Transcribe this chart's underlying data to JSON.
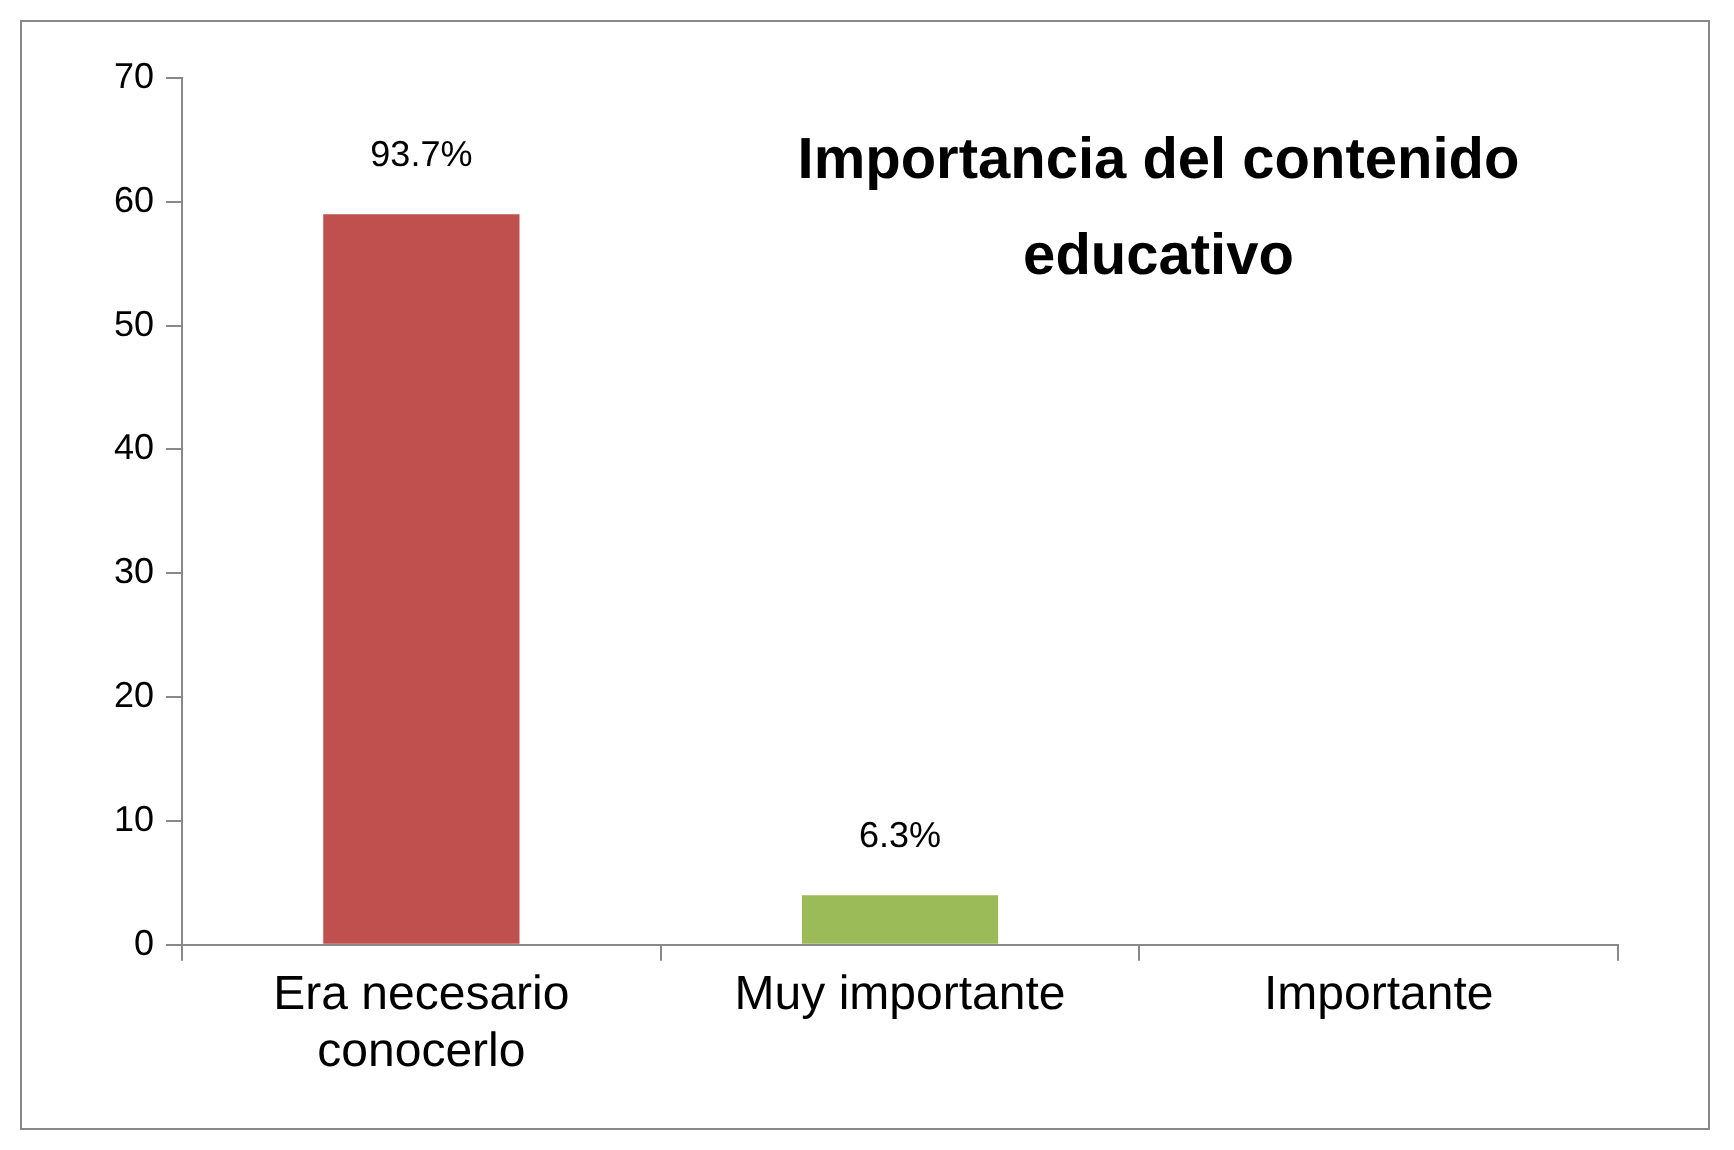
{
  "chart_data": {
    "type": "bar",
    "title": "Importancia del contenido educativo",
    "categories": [
      "Era necesario conocerlo",
      "Muy importante",
      "Importante"
    ],
    "values": [
      59,
      4,
      0
    ],
    "colors": [
      "#c0504d",
      "#9bbb59",
      "#4f81bd"
    ],
    "annotations": [
      {
        "text": "93.7%",
        "x": "Era necesario conocerlo",
        "y": 59
      },
      {
        "text": "6.3%",
        "x": "Muy importante",
        "y": 4
      }
    ],
    "ylim": [
      0,
      70
    ],
    "yticks": [
      0,
      10,
      20,
      30,
      40,
      50,
      60,
      70
    ],
    "grid": false,
    "legend": false
  }
}
